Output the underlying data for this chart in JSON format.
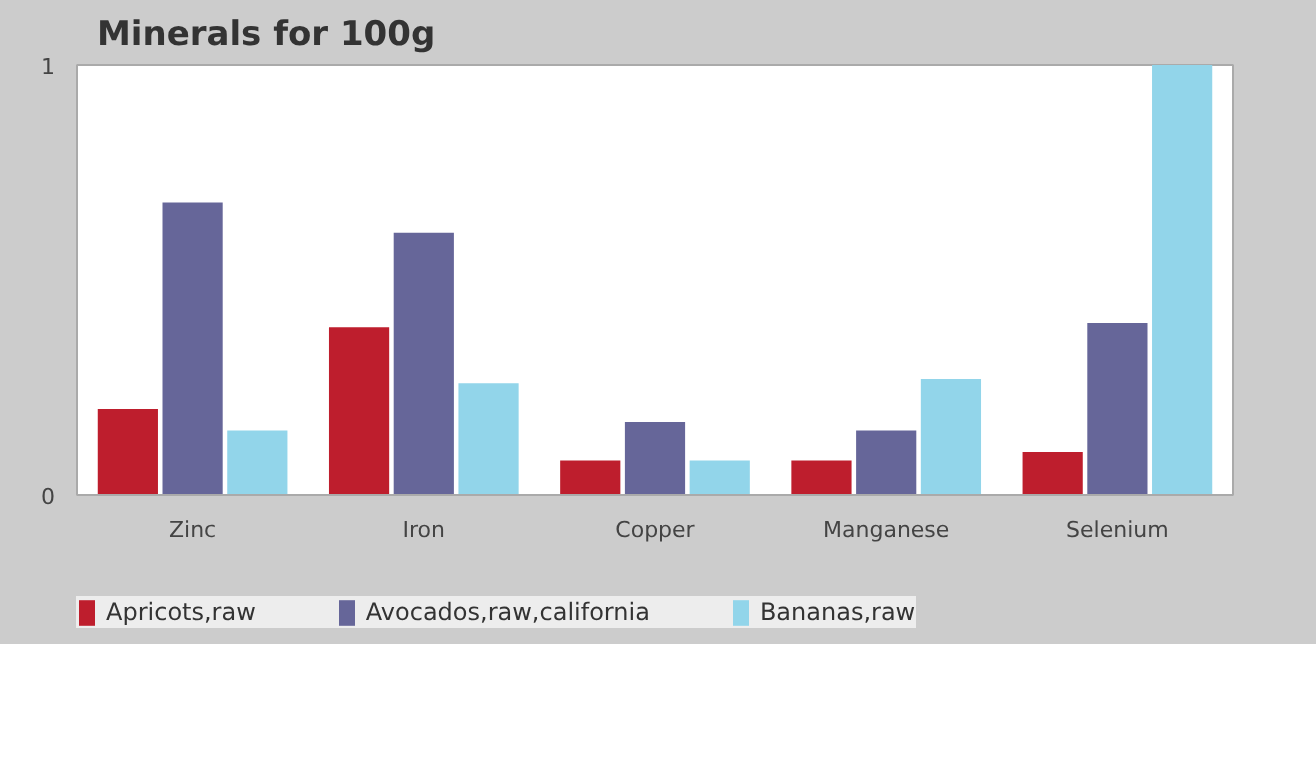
{
  "chart_data": {
    "type": "bar",
    "title": "Minerals for 100g",
    "categories": [
      "Zinc",
      "Iron",
      "Copper",
      "Manganese",
      "Selenium"
    ],
    "series": [
      {
        "name": "Apricots,raw",
        "color": "#be1e2d",
        "values": [
          0.2,
          0.39,
          0.08,
          0.08,
          0.1
        ]
      },
      {
        "name": "Avocados,raw,california",
        "color": "#666699",
        "values": [
          0.68,
          0.61,
          0.17,
          0.15,
          0.4
        ]
      },
      {
        "name": "Bananas,raw",
        "color": "#92d5ea",
        "values": [
          0.15,
          0.26,
          0.08,
          0.27,
          1.0
        ]
      }
    ],
    "ylim": [
      0,
      1
    ],
    "yticks": [
      0,
      1
    ],
    "grid": false,
    "legend": "bottom"
  }
}
